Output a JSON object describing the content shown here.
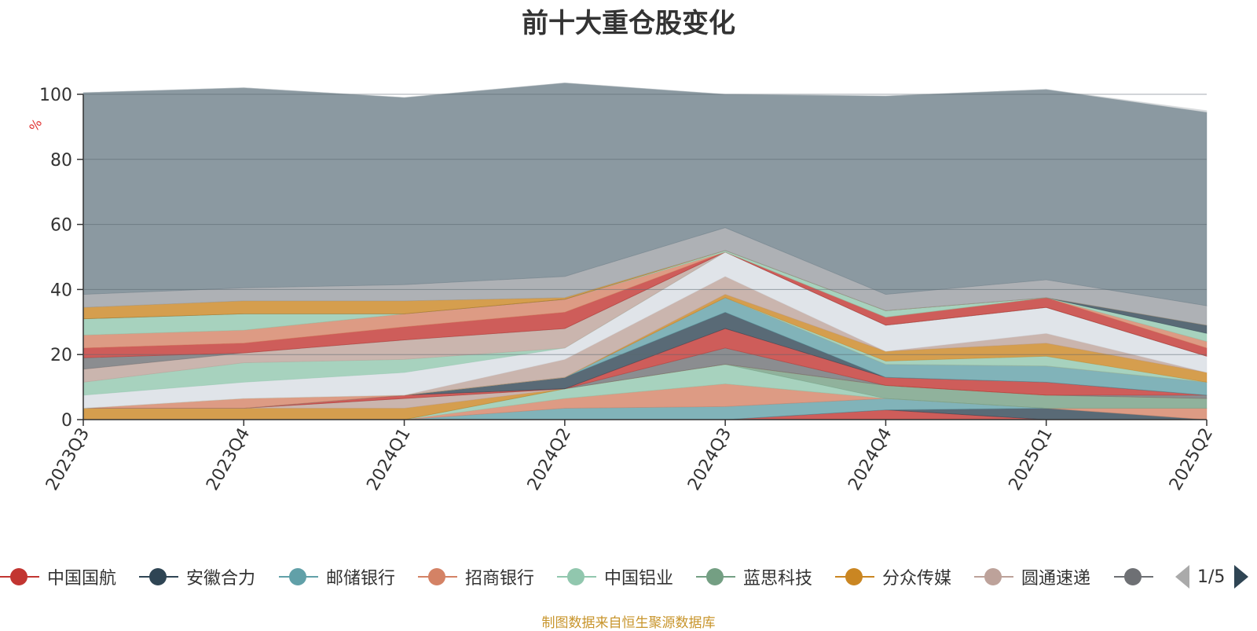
{
  "title": "前十大重仓股变化",
  "source_note": "制图数据来自恒生聚源数据库",
  "legend_pager": "1/5",
  "chart_data": {
    "type": "area",
    "stacked": true,
    "ylabel": "%",
    "ylim": [
      0,
      100
    ],
    "yticks": [
      "0",
      "20",
      "40",
      "60",
      "80",
      "100"
    ],
    "categories": [
      "2023Q3",
      "2023Q4",
      "2024Q1",
      "2024Q2",
      "2024Q3",
      "2024Q4",
      "2025Q1",
      "2025Q2"
    ],
    "grid": true,
    "legend_position": "bottom",
    "series": [
      {
        "name": "中国国航",
        "color": "#c23531",
        "values": [
          0,
          0,
          0,
          0,
          0,
          3,
          0,
          0
        ]
      },
      {
        "name": "安徽合力",
        "color": "#2f4554",
        "values": [
          0,
          0,
          0,
          0,
          0,
          0,
          3.5,
          0
        ]
      },
      {
        "name": "邮储银行",
        "color": "#61a0a8",
        "values": [
          0,
          0,
          0,
          3.5,
          4,
          3.5,
          0,
          0
        ]
      },
      {
        "name": "招商银行",
        "color": "#d48265",
        "values": [
          0,
          0,
          0,
          3,
          7,
          0,
          0,
          3.5
        ]
      },
      {
        "name": "中国铝业",
        "color": "#91c7ae",
        "values": [
          0,
          0,
          0,
          3,
          6,
          0,
          0,
          0
        ]
      },
      {
        "name": "蓝思科技",
        "color": "#749f83",
        "values": [
          0,
          0,
          0,
          0,
          0,
          4,
          4,
          3
        ]
      },
      {
        "name": "分众传媒",
        "color": "#ca8622",
        "values": [
          3.5,
          3.5,
          3.5,
          0,
          0,
          0,
          0,
          0
        ]
      },
      {
        "name": "圆通速递",
        "color": "#bda29a",
        "values": [
          0,
          0,
          3,
          0,
          0,
          0,
          0,
          0
        ]
      },
      {
        "name": "",
        "color": "#6e7074",
        "values": [
          0,
          0,
          0,
          0,
          5,
          0,
          0,
          1
        ]
      },
      {
        "name": "",
        "color": "#c23531",
        "values": [
          0,
          0,
          1,
          0,
          6,
          2.5,
          4,
          0
        ]
      },
      {
        "name": "",
        "color": "#2f4554",
        "values": [
          0,
          0,
          0,
          3.5,
          5,
          0,
          0,
          0
        ]
      },
      {
        "name": "",
        "color": "#61a0a8",
        "values": [
          0,
          0,
          0,
          0,
          4.5,
          4,
          5,
          4
        ]
      },
      {
        "name": "",
        "color": "#d48265",
        "values": [
          0,
          3,
          0,
          0,
          0,
          0,
          0,
          0
        ]
      },
      {
        "name": "",
        "color": "#91c7ae",
        "values": [
          0,
          0,
          0,
          0,
          0,
          1,
          3,
          0
        ]
      },
      {
        "name": "",
        "color": "#ca8622",
        "values": [
          0,
          0,
          0,
          0,
          1,
          3,
          4,
          3
        ]
      },
      {
        "name": "",
        "color": "#bda29a",
        "values": [
          0,
          0,
          0,
          5.5,
          5.5,
          0,
          3,
          0
        ]
      },
      {
        "name": "",
        "color": "#d8dde4",
        "values": [
          4,
          5,
          7,
          3.5,
          7.5,
          8,
          8,
          5
        ]
      },
      {
        "name": "",
        "color": "#91c7ae",
        "values": [
          4,
          6,
          4,
          0,
          0,
          0,
          0,
          0
        ]
      },
      {
        "name": "",
        "color": "#bda29a",
        "values": [
          4,
          3,
          6,
          6,
          0,
          0,
          0,
          0
        ]
      },
      {
        "name": "",
        "color": "#6e7074",
        "values": [
          3.5,
          0,
          0,
          0,
          0,
          0,
          0,
          0
        ]
      },
      {
        "name": "",
        "color": "#c23531",
        "values": [
          3,
          3,
          4,
          5,
          0,
          2.5,
          3,
          2.5
        ]
      },
      {
        "name": "",
        "color": "#d48265",
        "values": [
          4,
          4,
          4,
          4,
          0,
          0,
          0,
          2
        ]
      },
      {
        "name": "",
        "color": "#91c7ae",
        "values": [
          5,
          5,
          0,
          0,
          0.5,
          2,
          0,
          2.5
        ]
      },
      {
        "name": "",
        "color": "#2f4554",
        "values": [
          0,
          0,
          0,
          0,
          0,
          0,
          0,
          2.5
        ]
      },
      {
        "name": "",
        "color": "#ca8622",
        "values": [
          3.5,
          4,
          4,
          0.5,
          0,
          0,
          0,
          0
        ]
      },
      {
        "name": "",
        "color": "#9a9ea3",
        "values": [
          4,
          4,
          5,
          6.5,
          7,
          5,
          5.5,
          6
        ]
      },
      {
        "name": "",
        "color": "#6e7f89",
        "values": [
          62,
          61.5,
          57.5,
          59.5,
          41,
          61,
          58.5,
          59.5
        ]
      },
      {
        "name": "",
        "color": "#d0d3d6",
        "values": [
          0,
          0,
          0,
          0,
          0,
          0,
          0,
          0.5
        ]
      }
    ]
  }
}
